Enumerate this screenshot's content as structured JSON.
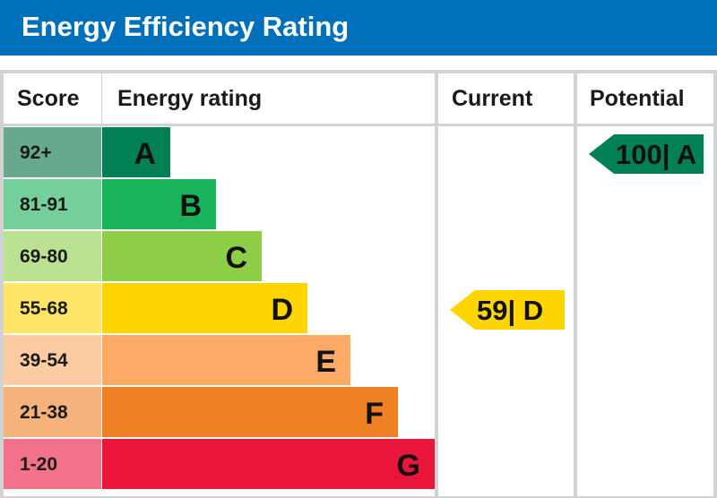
{
  "title": "Energy Efficiency Rating",
  "columns": {
    "score": "Score",
    "rating": "Energy rating",
    "current": "Current",
    "potential": "Potential"
  },
  "bands": [
    {
      "score": "92+",
      "letter": "A",
      "color": "#008054",
      "score_bg": "#66a98d"
    },
    {
      "score": "81-91",
      "letter": "B",
      "color": "#19b459",
      "score_bg": "#75cf9a"
    },
    {
      "score": "69-80",
      "letter": "C",
      "color": "#8dce46",
      "score_bg": "#bbe290"
    },
    {
      "score": "55-68",
      "letter": "D",
      "color": "#ffd500",
      "score_bg": "#ffe566"
    },
    {
      "score": "39-54",
      "letter": "E",
      "color": "#fcaa65",
      "score_bg": "#fdcca3"
    },
    {
      "score": "21-38",
      "letter": "F",
      "color": "#ef8023",
      "score_bg": "#f5b37b"
    },
    {
      "score": "1-20",
      "letter": "G",
      "color": "#e9153b",
      "score_bg": "#f27389"
    }
  ],
  "current": {
    "value": 59,
    "band": "D",
    "label": "59| D",
    "color": "#ffd500",
    "text_color": "#111111"
  },
  "potential": {
    "value": 100,
    "band": "A",
    "label": "100| A",
    "color": "#008054",
    "text_color": "#111111"
  },
  "chart_data": {
    "type": "bar",
    "title": "Energy Efficiency Rating",
    "categories": [
      "A",
      "B",
      "C",
      "D",
      "E",
      "F",
      "G"
    ],
    "score_ranges": [
      "92+",
      "81-91",
      "69-80",
      "55-68",
      "39-54",
      "21-38",
      "1-20"
    ],
    "series": [
      {
        "name": "Current",
        "values": [
          null,
          null,
          null,
          59,
          null,
          null,
          null
        ]
      },
      {
        "name": "Potential",
        "values": [
          100,
          null,
          null,
          null,
          null,
          null,
          null
        ]
      }
    ],
    "current": 59,
    "potential": 100
  }
}
